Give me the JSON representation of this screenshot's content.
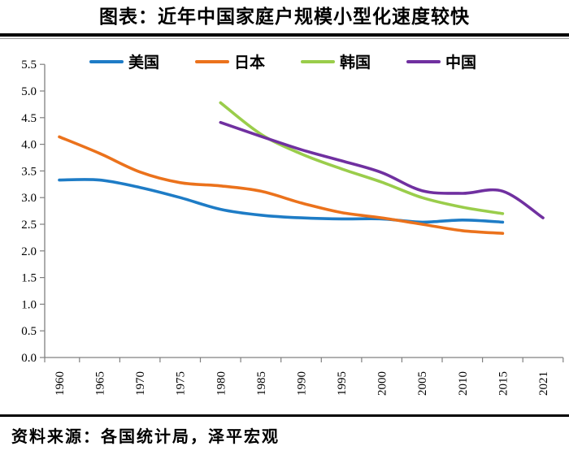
{
  "title": "图表：近年中国家庭户规模小型化速度较快",
  "source": "资料来源：各国统计局，泽平宏观",
  "chart_data": {
    "type": "line",
    "title": "图表：近年中国家庭户规模小型化速度较快",
    "categories": [
      "1960",
      "1965",
      "1970",
      "1975",
      "1980",
      "1985",
      "1990",
      "1995",
      "2000",
      "2005",
      "2010",
      "2015",
      "2021"
    ],
    "series": [
      {
        "id": "us",
        "name": "美国",
        "color": "#1E7CC6",
        "values": [
          3.33,
          3.33,
          3.19,
          3.0,
          2.78,
          2.67,
          2.62,
          2.6,
          2.6,
          2.54,
          2.58,
          2.54,
          null
        ]
      },
      {
        "id": "japan",
        "name": "日本",
        "color": "#EB721C",
        "values": [
          4.14,
          3.83,
          3.48,
          3.28,
          3.22,
          3.12,
          2.9,
          2.72,
          2.62,
          2.5,
          2.38,
          2.33,
          null
        ]
      },
      {
        "id": "korea",
        "name": "韩国",
        "color": "#9ACD4B",
        "values": [
          null,
          null,
          null,
          null,
          4.78,
          4.19,
          3.82,
          3.54,
          3.29,
          3.0,
          2.82,
          2.7,
          null
        ]
      },
      {
        "id": "china",
        "name": "中国",
        "color": "#7030A0",
        "values": [
          null,
          null,
          null,
          null,
          4.41,
          4.15,
          3.9,
          3.69,
          3.47,
          3.13,
          3.08,
          3.12,
          2.62
        ]
      }
    ],
    "ylim": [
      0,
      5.5
    ],
    "ytick_step": 0.5,
    "ytick_format_decimals": 1,
    "xlabel": "",
    "ylabel": "",
    "grid": false,
    "legend_position": "top",
    "axis_color": "#808080",
    "tick_label_color": "#000000"
  }
}
